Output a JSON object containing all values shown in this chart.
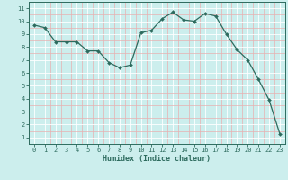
{
  "x": [
    0,
    1,
    2,
    3,
    4,
    5,
    6,
    7,
    8,
    9,
    10,
    11,
    12,
    13,
    14,
    15,
    16,
    17,
    18,
    19,
    20,
    21,
    22,
    23
  ],
  "y": [
    9.7,
    9.5,
    8.4,
    8.4,
    8.4,
    7.7,
    7.7,
    6.8,
    6.4,
    6.6,
    9.1,
    9.3,
    10.2,
    10.7,
    10.1,
    10.0,
    10.6,
    10.4,
    9.0,
    7.8,
    7.0,
    5.5,
    3.9,
    1.3
  ],
  "line_color": "#2d6b5e",
  "marker": "D",
  "marker_size": 2.0,
  "bg_color": "#cceeed",
  "grid_major_color": "#ffffff",
  "grid_minor_color": "#e8b0b0",
  "xlabel": "Humidex (Indice chaleur)",
  "xlim": [
    -0.5,
    23.5
  ],
  "ylim": [
    0.5,
    11.5
  ],
  "xtick_labels": [
    "0",
    "1",
    "2",
    "3",
    "4",
    "5",
    "6",
    "7",
    "8",
    "9",
    "10",
    "11",
    "12",
    "13",
    "14",
    "15",
    "16",
    "17",
    "18",
    "19",
    "20",
    "21",
    "22",
    "23"
  ],
  "ytick_labels": [
    "1",
    "2",
    "3",
    "4",
    "5",
    "6",
    "7",
    "8",
    "9",
    "10",
    "11"
  ],
  "ytick_values": [
    1,
    2,
    3,
    4,
    5,
    6,
    7,
    8,
    9,
    10,
    11
  ],
  "font_color": "#2d6b5e",
  "xlabel_fontsize": 6.0,
  "tick_fontsize": 5.0
}
